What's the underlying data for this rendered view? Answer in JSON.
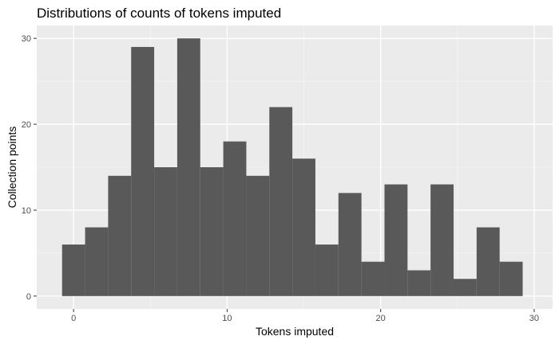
{
  "chart_data": {
    "type": "bar",
    "title": "Distributions of counts of tokens imputed",
    "xlabel": "Tokens imputed",
    "ylabel": "Collection points",
    "xlim": [
      -2.4,
      31.2
    ],
    "ylim": [
      -1.5,
      31.5
    ],
    "x_ticks": [
      0,
      10,
      20,
      30
    ],
    "y_ticks": [
      0,
      10,
      20,
      30
    ],
    "x_tick_labels": [
      "0",
      "10",
      "20",
      "30"
    ],
    "y_tick_labels": [
      "0",
      "10",
      "20",
      "30"
    ],
    "bin_width": 1.5,
    "bins": [
      {
        "x": 0.0,
        "count": 6
      },
      {
        "x": 1.5,
        "count": 8
      },
      {
        "x": 3.0,
        "count": 14
      },
      {
        "x": 4.5,
        "count": 29
      },
      {
        "x": 6.0,
        "count": 15
      },
      {
        "x": 7.5,
        "count": 30
      },
      {
        "x": 9.0,
        "count": 15
      },
      {
        "x": 10.5,
        "count": 18
      },
      {
        "x": 12.0,
        "count": 14
      },
      {
        "x": 13.5,
        "count": 22
      },
      {
        "x": 15.0,
        "count": 16
      },
      {
        "x": 16.5,
        "count": 6
      },
      {
        "x": 18.0,
        "count": 12
      },
      {
        "x": 19.5,
        "count": 4
      },
      {
        "x": 21.0,
        "count": 13
      },
      {
        "x": 22.5,
        "count": 3
      },
      {
        "x": 24.0,
        "count": 13
      },
      {
        "x": 25.5,
        "count": 2
      },
      {
        "x": 27.0,
        "count": 8
      },
      {
        "x": 28.5,
        "count": 4
      }
    ],
    "grid": true,
    "legend": "none",
    "colors": {
      "panel": "#ebebeb",
      "grid_major": "#ffffff",
      "grid_minor": "#f5f5f5",
      "bar": "#595959",
      "tick": "#333333"
    }
  }
}
